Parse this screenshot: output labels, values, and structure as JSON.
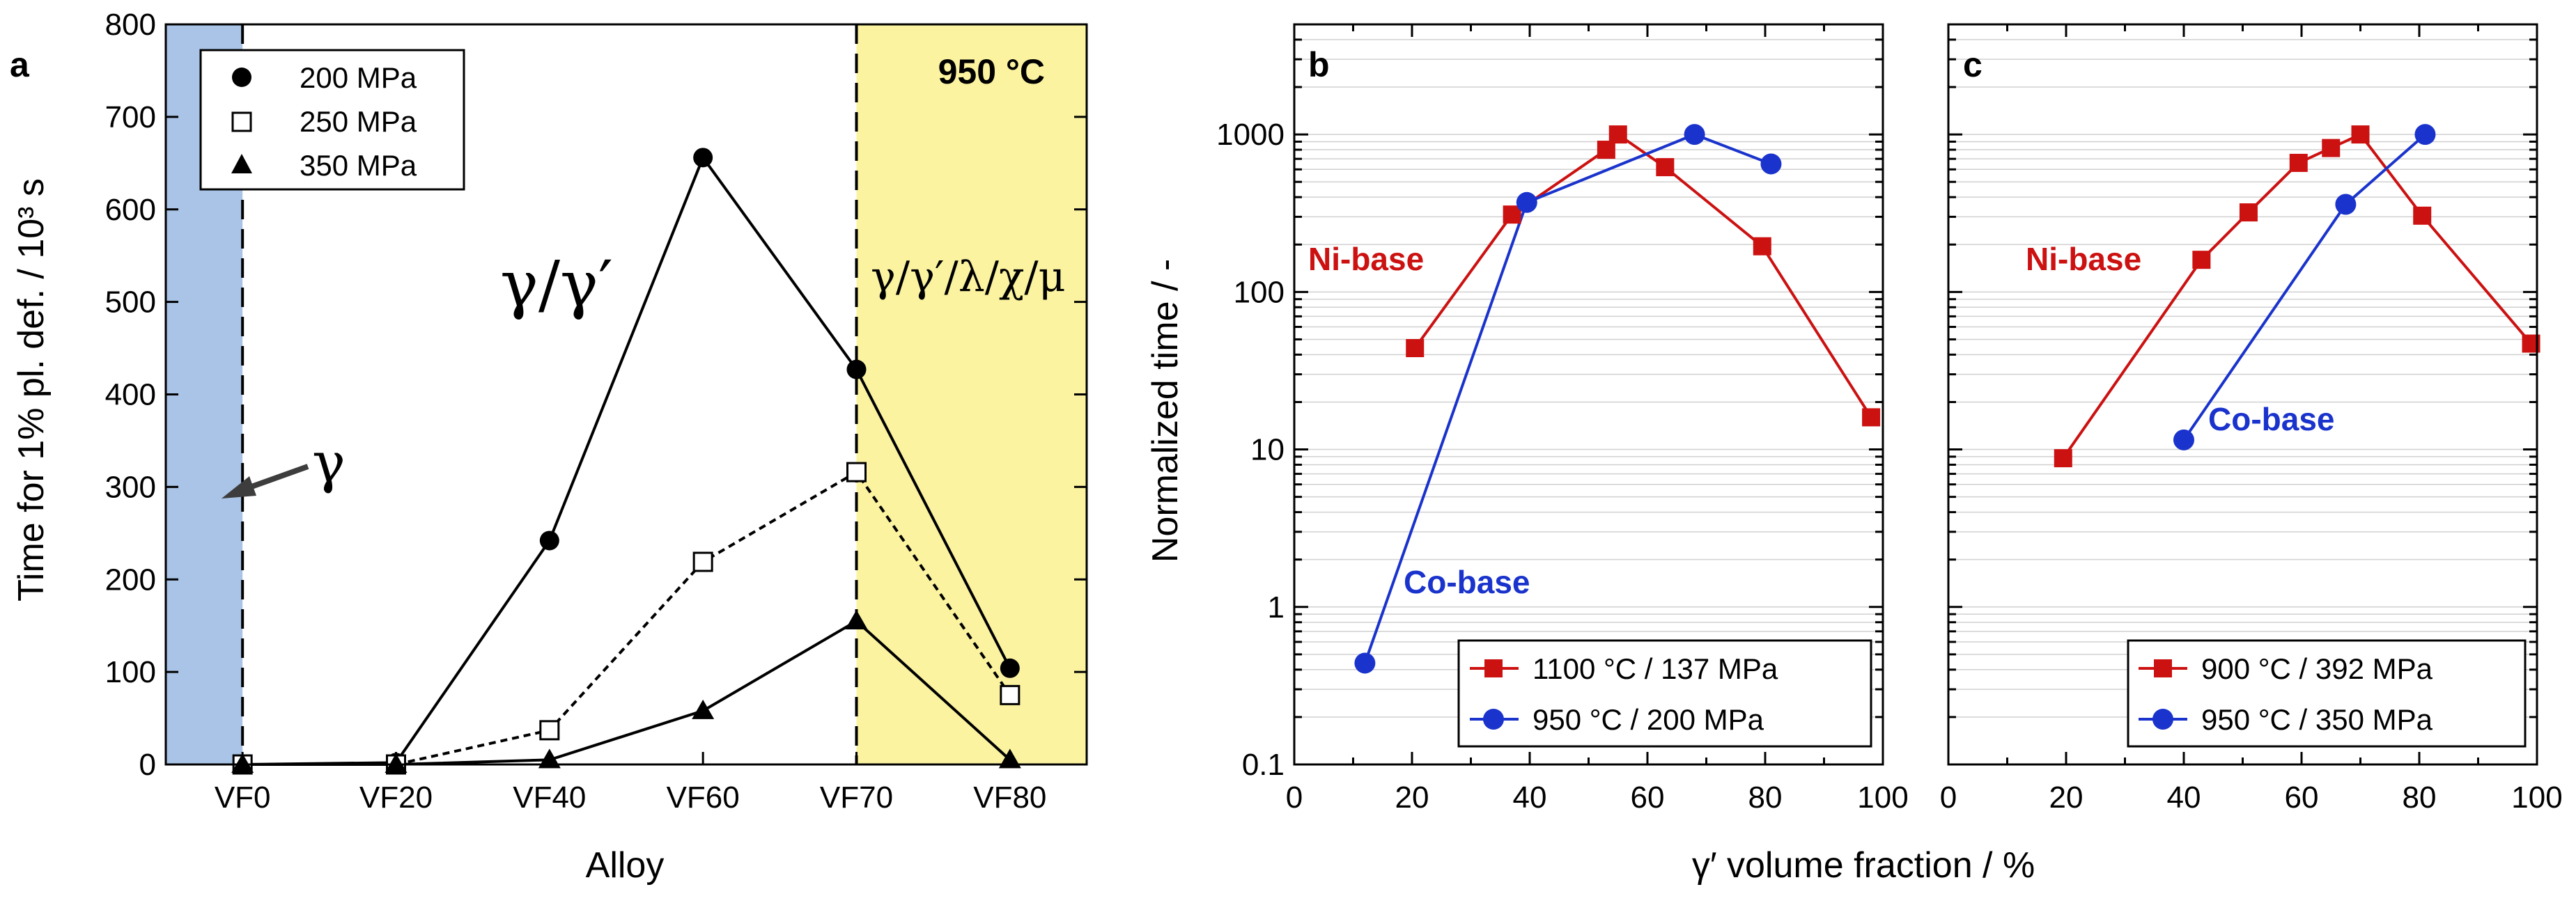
{
  "chart_data": [
    {
      "panel": "a",
      "type": "line",
      "ylabel": "Time for 1% pl. def. / 10³ s",
      "xlabel": "Alloy",
      "categories": [
        "VF0",
        "VF20",
        "VF40",
        "VF60",
        "VF70",
        "VF80"
      ],
      "ylim": [
        0,
        800
      ],
      "yticks": [
        "0",
        "100",
        "200",
        "300",
        "400",
        "500",
        "600",
        "700",
        "800"
      ],
      "series": [
        {
          "name": "200 MPa",
          "marker": "filled-circle",
          "line": "solid",
          "values": [
            0,
            2,
            242,
            656,
            427,
            104
          ]
        },
        {
          "name": "250 MPa",
          "marker": "open-square",
          "line": "dotted",
          "values": [
            0,
            0,
            37,
            219,
            316,
            75
          ]
        },
        {
          "name": "350 MPa",
          "marker": "filled-triangle",
          "line": "solid",
          "values": [
            0,
            0,
            5,
            58,
            155,
            5
          ]
        }
      ],
      "annotations": {
        "temperature": "950 °C",
        "gamma_gamma_prime": "γ/γ′",
        "gamma": "γ",
        "multiphase": "γ/γ′/λ/χ/μ"
      },
      "regions": [
        {
          "label": "γ",
          "color": "#a9c4e6"
        },
        {
          "label": "γ/γ′/λ/χ/μ",
          "color": "#fbf3a0"
        }
      ]
    },
    {
      "panel": "b",
      "type": "line",
      "ylabel": "Normalized time / -",
      "xlim": [
        0,
        100
      ],
      "ylim": [
        0.1,
        5000
      ],
      "yscale": "log",
      "xticks": [
        "0",
        "20",
        "40",
        "60",
        "80",
        "100"
      ],
      "yticks": [
        "0.1",
        "1",
        "10",
        "100",
        "1000"
      ],
      "series": [
        {
          "name": "1100 °C / 137 MPa",
          "color": "#cc1111",
          "marker": "square",
          "x": [
            20.5,
            37,
            53,
            55,
            63,
            79.5,
            98
          ],
          "y": [
            44,
            310,
            800,
            1000,
            620,
            195,
            16
          ]
        },
        {
          "name": "950 °C / 200 MPa",
          "color": "#1a33cc",
          "marker": "circle",
          "x": [
            12,
            39.5,
            68,
            81
          ],
          "y": [
            0.44,
            370,
            1000,
            650
          ]
        }
      ],
      "labels": {
        "ni": "Ni-base",
        "co": "Co-base"
      }
    },
    {
      "panel": "c",
      "type": "line",
      "xlim": [
        0,
        100
      ],
      "ylim": [
        0.1,
        5000
      ],
      "yscale": "log",
      "xticks": [
        "0",
        "20",
        "40",
        "60",
        "80",
        "100"
      ],
      "series": [
        {
          "name": "900 °C / 392 MPa",
          "color": "#cc1111",
          "marker": "square",
          "x": [
            19.5,
            43,
            51,
            59.5,
            65,
            70,
            80.5,
            99
          ],
          "y": [
            8.8,
            160,
            320,
            660,
            820,
            1000,
            305,
            47
          ]
        },
        {
          "name": "950 °C / 350 MPa",
          "color": "#1a33cc",
          "marker": "circle",
          "x": [
            40,
            67.5,
            81
          ],
          "y": [
            11.5,
            360,
            1000
          ]
        }
      ],
      "labels": {
        "ni": "Ni-base",
        "co": "Co-base"
      }
    }
  ],
  "shared_xlabel": "γ′ volume fraction / %"
}
